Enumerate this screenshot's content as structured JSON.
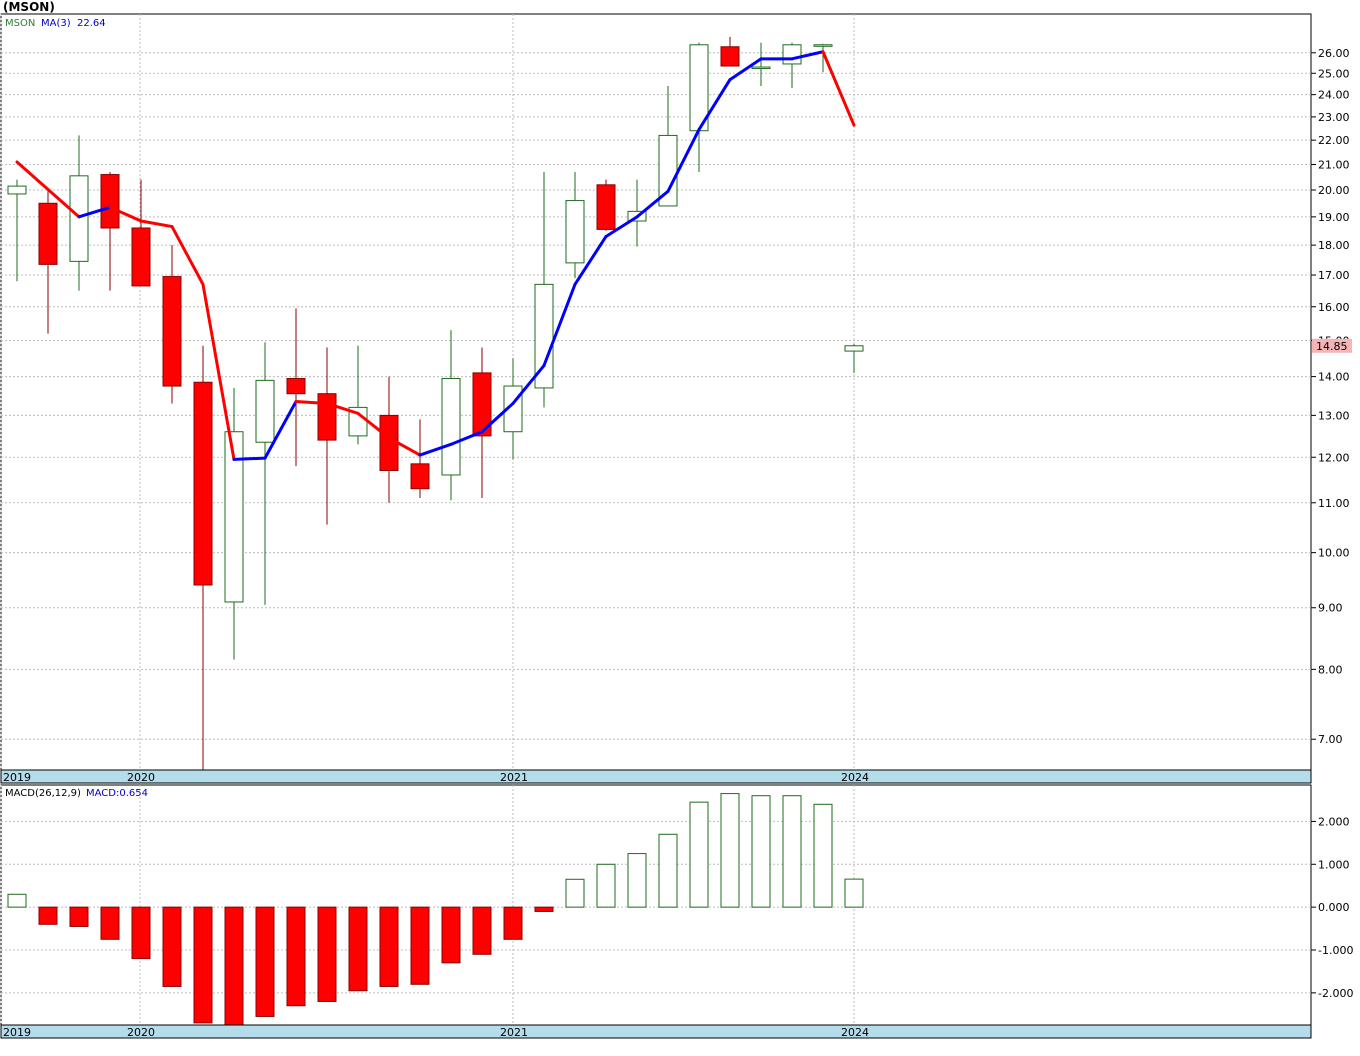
{
  "title": "(MSON)",
  "colors": {
    "up_border": "#1f6b1f",
    "down_fill": "#ff0000",
    "down_border": "#8b0000",
    "ma_up": "#0000ff",
    "ma_down": "#ff0000",
    "axis_band": "#b4dcea",
    "current_bg": "#f5b5b5",
    "legend_symbol": "#2e7d32"
  },
  "chart_data": [
    {
      "type": "candlestick",
      "legend": {
        "symbol": "MSON",
        "ma_label": "MA(3)",
        "ma_value": "22.64"
      },
      "y_scale": "log",
      "ylim": [
        6.6,
        28.0
      ],
      "yticks": [
        "26.00",
        "25.00",
        "24.00",
        "23.00",
        "22.00",
        "21.00",
        "20.00",
        "19.00",
        "18.00",
        "17.00",
        "16.00",
        "15.00",
        "14.00",
        "13.00",
        "12.00",
        "11.00",
        "10.00",
        "9.00",
        "8.00",
        "7.00"
      ],
      "x_labels": [
        "2019",
        "2020",
        "2021",
        "2024"
      ],
      "x_label_positions": [
        0,
        4,
        16,
        27
      ],
      "current_price": "14.85",
      "candles": [
        {
          "o": 19.85,
          "h": 20.4,
          "l": 16.8,
          "c": 20.15
        },
        {
          "o": 19.5,
          "h": 20.0,
          "l": 15.2,
          "c": 17.35
        },
        {
          "o": 17.45,
          "h": 22.2,
          "l": 16.5,
          "c": 20.55
        },
        {
          "o": 20.6,
          "h": 20.7,
          "l": 16.5,
          "c": 18.6
        },
        {
          "o": 18.6,
          "h": 20.4,
          "l": 16.65,
          "c": 16.65
        },
        {
          "o": 16.95,
          "h": 18.0,
          "l": 13.3,
          "c": 13.75
        },
        {
          "o": 13.85,
          "h": 14.85,
          "l": 6.6,
          "c": 9.4
        },
        {
          "o": 9.1,
          "h": 13.7,
          "l": 8.15,
          "c": 12.6
        },
        {
          "o": 12.35,
          "h": 14.95,
          "l": 9.05,
          "c": 13.9
        },
        {
          "o": 13.95,
          "h": 15.95,
          "l": 11.8,
          "c": 13.55
        },
        {
          "o": 13.55,
          "h": 14.8,
          "l": 10.55,
          "c": 12.4
        },
        {
          "o": 12.5,
          "h": 14.85,
          "l": 12.3,
          "c": 13.2
        },
        {
          "o": 13.0,
          "h": 14.0,
          "l": 11.0,
          "c": 11.7
        },
        {
          "o": 11.85,
          "h": 12.9,
          "l": 11.1,
          "c": 11.3
        },
        {
          "o": 11.6,
          "h": 15.3,
          "l": 11.05,
          "c": 13.95
        },
        {
          "o": 14.1,
          "h": 14.8,
          "l": 11.1,
          "c": 12.5
        },
        {
          "o": 12.6,
          "h": 14.5,
          "l": 11.95,
          "c": 13.75
        },
        {
          "o": 13.7,
          "h": 20.7,
          "l": 13.2,
          "c": 16.7
        },
        {
          "o": 17.4,
          "h": 20.7,
          "l": 16.9,
          "c": 19.6
        },
        {
          "o": 20.2,
          "h": 20.4,
          "l": 18.5,
          "c": 18.55
        },
        {
          "o": 18.85,
          "h": 20.4,
          "l": 17.95,
          "c": 19.2
        },
        {
          "o": 19.4,
          "h": 24.4,
          "l": 19.4,
          "c": 22.2
        },
        {
          "o": 22.4,
          "h": 26.5,
          "l": 20.7,
          "c": 26.4
        },
        {
          "o": 26.3,
          "h": 26.8,
          "l": 25.35,
          "c": 25.35
        },
        {
          "o": 25.3,
          "h": 26.5,
          "l": 24.4,
          "c": 25.3
        },
        {
          "o": 25.45,
          "h": 26.5,
          "l": 24.3,
          "c": 26.4
        },
        {
          "o": 26.4,
          "h": 26.45,
          "l": 25.05,
          "c": 26.4
        },
        {
          "o": 14.7,
          "h": 14.9,
          "l": 14.1,
          "c": 14.85
        }
      ],
      "ma": [
        21.1,
        null,
        19.0,
        19.35,
        18.85,
        18.65,
        16.7,
        11.95,
        11.98,
        13.35,
        13.3,
        13.05,
        12.45,
        12.05,
        12.3,
        12.6,
        13.3,
        14.3,
        16.7,
        18.3,
        19.0,
        19.95,
        22.45,
        24.7,
        25.7,
        25.7,
        26.05,
        22.64
      ]
    },
    {
      "type": "bar",
      "legend": {
        "label": "MACD(26,12,9)",
        "value_label": "MACD:0.654"
      },
      "ylim": [
        -2.75,
        2.85
      ],
      "yticks": [
        "2.000",
        "1.000",
        "0.000",
        "-1.000",
        "-2.000"
      ],
      "x_labels": [
        "2019",
        "2020",
        "2021",
        "2024"
      ],
      "values": [
        0.3,
        -0.4,
        -0.45,
        -0.75,
        -1.2,
        -1.85,
        -2.7,
        -2.75,
        -2.55,
        -2.3,
        -2.2,
        -1.95,
        -1.85,
        -1.8,
        -1.3,
        -1.1,
        -0.75,
        -0.1,
        0.65,
        1.0,
        1.25,
        1.7,
        2.45,
        2.65,
        2.6,
        2.6,
        2.4,
        0.654
      ]
    }
  ]
}
